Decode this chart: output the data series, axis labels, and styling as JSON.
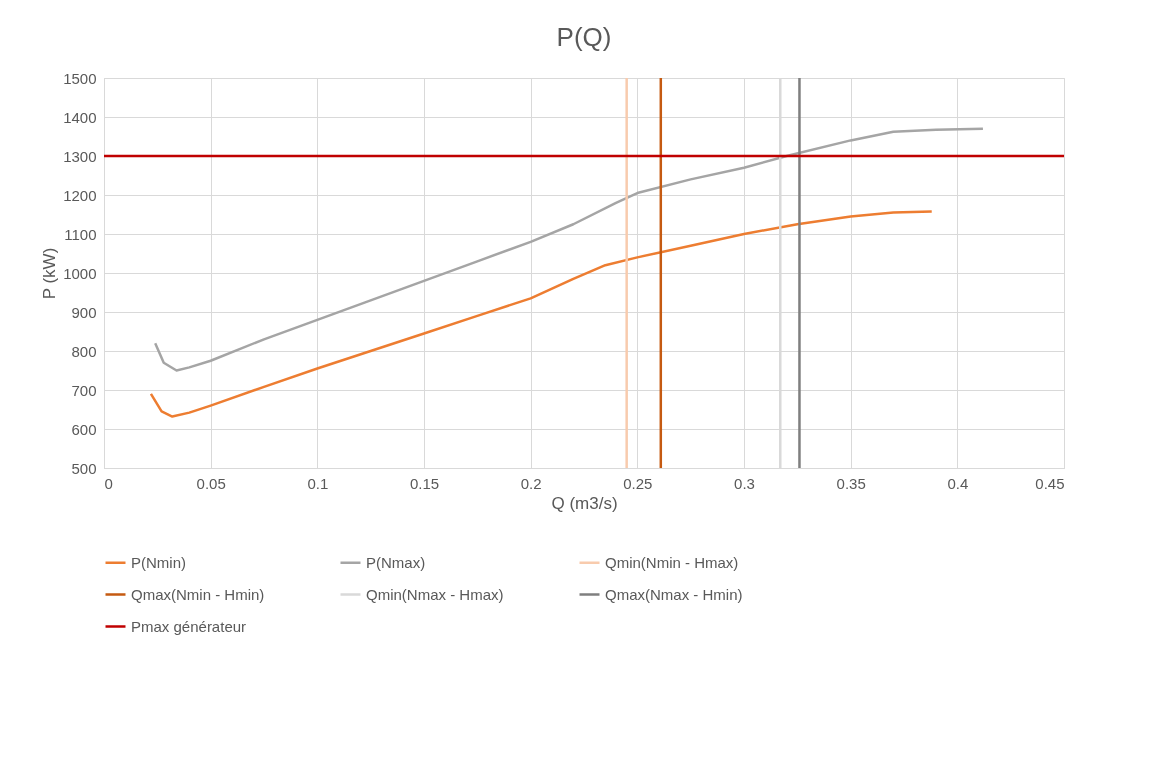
{
  "chart_data": {
    "type": "line",
    "title": "P(Q)",
    "xlabel": "Q (m3/s)",
    "ylabel": "P (kW)",
    "xlim": [
      0,
      0.45
    ],
    "xticks": [
      0,
      0.05,
      0.1,
      0.15,
      0.2,
      0.25,
      0.3,
      0.35,
      0.4,
      0.45
    ],
    "ylim": [
      500,
      1500
    ],
    "yticks": [
      500,
      600,
      700,
      800,
      900,
      1000,
      1100,
      1200,
      1300,
      1400,
      1500
    ],
    "grid": true,
    "legend": "bottom",
    "marker": "none",
    "line_style": "solid",
    "series": [
      {
        "name": "P(Nmin)",
        "color": "#ed7d31",
        "x": [
          0.022,
          0.027,
          0.032,
          0.04,
          0.05,
          0.075,
          0.1,
          0.125,
          0.15,
          0.175,
          0.2,
          0.22,
          0.235,
          0.25,
          0.275,
          0.3,
          0.325,
          0.35,
          0.37,
          0.388
        ],
        "values": [
          690,
          645,
          632,
          642,
          660,
          708,
          755,
          800,
          845,
          890,
          935,
          985,
          1020,
          1040,
          1070,
          1100,
          1125,
          1145,
          1155,
          1158
        ]
      },
      {
        "name": "P(Nmax)",
        "color": "#a5a5a5",
        "x": [
          0.024,
          0.028,
          0.034,
          0.04,
          0.05,
          0.075,
          0.1,
          0.125,
          0.15,
          0.175,
          0.2,
          0.22,
          0.24,
          0.25,
          0.275,
          0.3,
          0.32,
          0.35,
          0.37,
          0.39,
          0.412
        ],
        "values": [
          820,
          770,
          750,
          758,
          775,
          830,
          880,
          930,
          980,
          1030,
          1080,
          1125,
          1180,
          1205,
          1240,
          1270,
          1300,
          1340,
          1362,
          1367,
          1370
        ]
      },
      {
        "name": "Qmin(Nmin - Hmax)",
        "color": "#f8cbad",
        "x": [
          0.245,
          0.245
        ],
        "values": [
          500,
          1500
        ]
      },
      {
        "name": "Qmax(Nmin - Hmin)",
        "color": "#c55a11",
        "x": [
          0.261,
          0.261
        ],
        "values": [
          500,
          1500
        ]
      },
      {
        "name": "Qmin(Nmax - Hmax)",
        "color": "#d9d9d9",
        "x": [
          0.317,
          0.317
        ],
        "values": [
          500,
          1500
        ]
      },
      {
        "name": "Qmax(Nmax - Hmin)",
        "color": "#7f7f7f",
        "x": [
          0.326,
          0.326
        ],
        "values": [
          500,
          1500
        ]
      },
      {
        "name": "Pmax générateur",
        "color": "#c00000",
        "x": [
          0,
          0.45
        ],
        "values": [
          1300,
          1300
        ]
      }
    ]
  }
}
